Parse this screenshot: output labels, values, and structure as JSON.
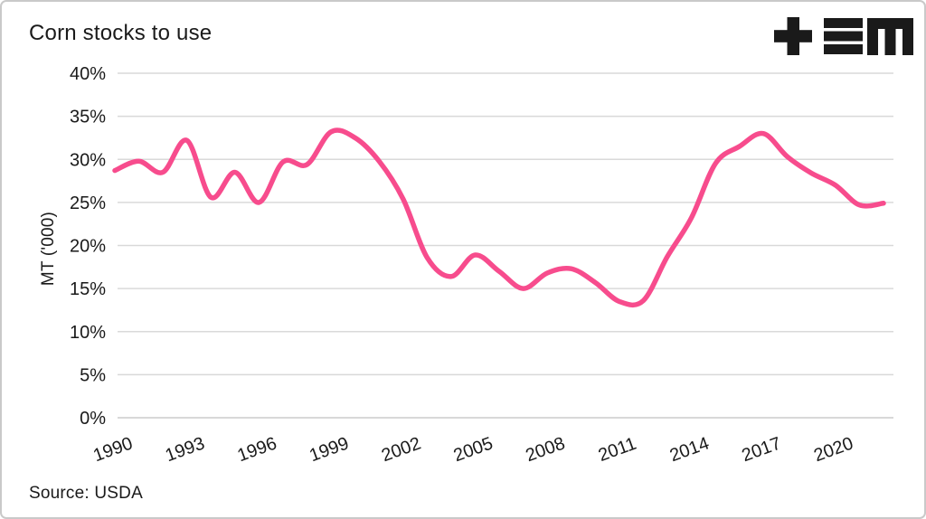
{
  "title": "Corn stocks to use",
  "source": "Source: USDA",
  "logo": {
    "name": "tem-logo",
    "color": "#1a1a1a"
  },
  "colors": {
    "line": "#f74c8d",
    "grid": "#d9d9d9",
    "axis": "#cccccc",
    "text": "#1a1a1a",
    "background": "#ffffff",
    "border": "#c9c9c9"
  },
  "chart_data": {
    "type": "line",
    "title": "Corn stocks to use",
    "xlabel": "",
    "ylabel": "MT ('000)",
    "ylim": [
      0,
      40
    ],
    "y_ticks": [
      0,
      5,
      10,
      15,
      20,
      25,
      30,
      35,
      40
    ],
    "y_tick_suffix": "%",
    "x_tick_years": [
      1990,
      1993,
      1996,
      1999,
      2002,
      2005,
      2008,
      2011,
      2014,
      2017,
      2020
    ],
    "x_tick_rotation": -20,
    "grid": "horizontal",
    "legend": "none",
    "smoothing": "spline",
    "series": [
      {
        "name": "Corn stocks to use",
        "color": "#f74c8d",
        "x": [
          1990,
          1991,
          1992,
          1993,
          1994,
          1995,
          1996,
          1997,
          1998,
          1999,
          2000,
          2001,
          2002,
          2003,
          2004,
          2005,
          2006,
          2007,
          2008,
          2009,
          2010,
          2011,
          2012,
          2013,
          2014,
          2015,
          2016,
          2017,
          2018,
          2019,
          2020,
          2021,
          2022
        ],
        "values": [
          28.7,
          29.8,
          28.5,
          32.2,
          25.6,
          28.5,
          25.0,
          29.7,
          29.4,
          33.2,
          32.5,
          29.8,
          25.4,
          18.6,
          16.4,
          18.9,
          17.0,
          15.0,
          16.8,
          17.3,
          15.7,
          13.5,
          13.6,
          18.7,
          23.2,
          29.5,
          31.5,
          33.0,
          30.3,
          28.4,
          27.0,
          24.7,
          24.9
        ]
      }
    ]
  }
}
